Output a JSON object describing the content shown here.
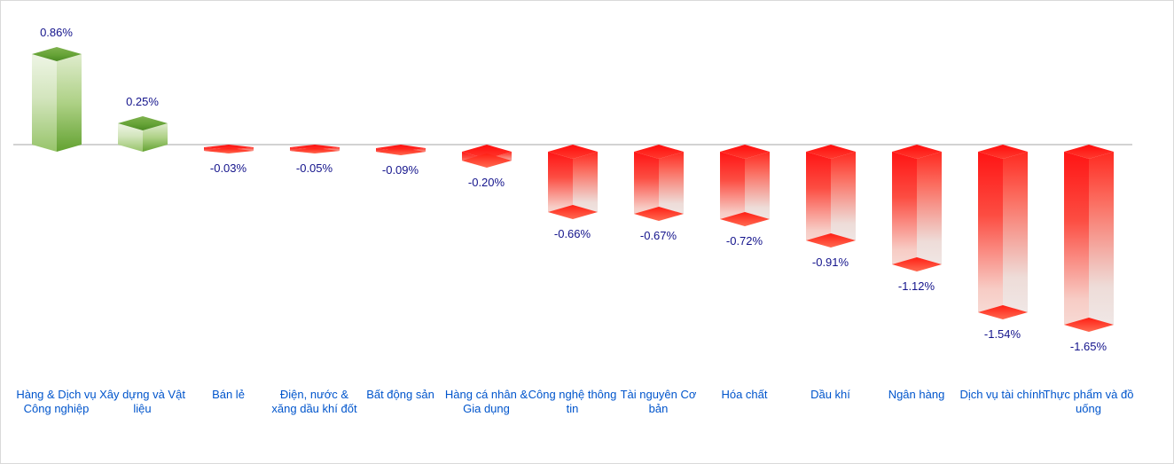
{
  "chart_data": {
    "type": "bar",
    "variant": "3d-column",
    "orientation": "vertical",
    "baseline": 0,
    "grid": "off",
    "legend": "none",
    "value_unit": "%",
    "ylim": [
      -1.8,
      1.0
    ],
    "categories": [
      "Hàng & Dịch vụ Công nghiệp",
      "Xây dựng và Vật liệu",
      "Bán lẻ",
      "Điện, nước & xăng dầu khí đốt",
      "Bất động sản",
      "Hàng cá nhân & Gia dụng",
      "Công nghệ thông tin",
      "Tài nguyên Cơ bản",
      "Hóa chất",
      "Dầu khí",
      "Ngân hàng",
      "Dịch vụ tài chính",
      "Thực phẩm và đồ uống"
    ],
    "values": [
      0.86,
      0.25,
      -0.03,
      -0.05,
      -0.09,
      -0.2,
      -0.66,
      -0.67,
      -0.72,
      -0.91,
      -1.12,
      -1.54,
      -1.65
    ],
    "data_labels": [
      "0.86%",
      "0.25%",
      "-0.03%",
      "-0.05%",
      "-0.09%",
      "-0.20%",
      "-0.66%",
      "-0.67%",
      "-0.72%",
      "-0.91%",
      "-1.12%",
      "-1.54%",
      "-1.65%"
    ],
    "colors": {
      "positive_bar": "#6fae3e",
      "negative_bar": "#ff1c1c",
      "value_label": "#14148c",
      "category_label": "#0055cc",
      "axis_line": "#d2d2d2",
      "background": "#ffffff",
      "border": "#d9d9d9"
    }
  }
}
